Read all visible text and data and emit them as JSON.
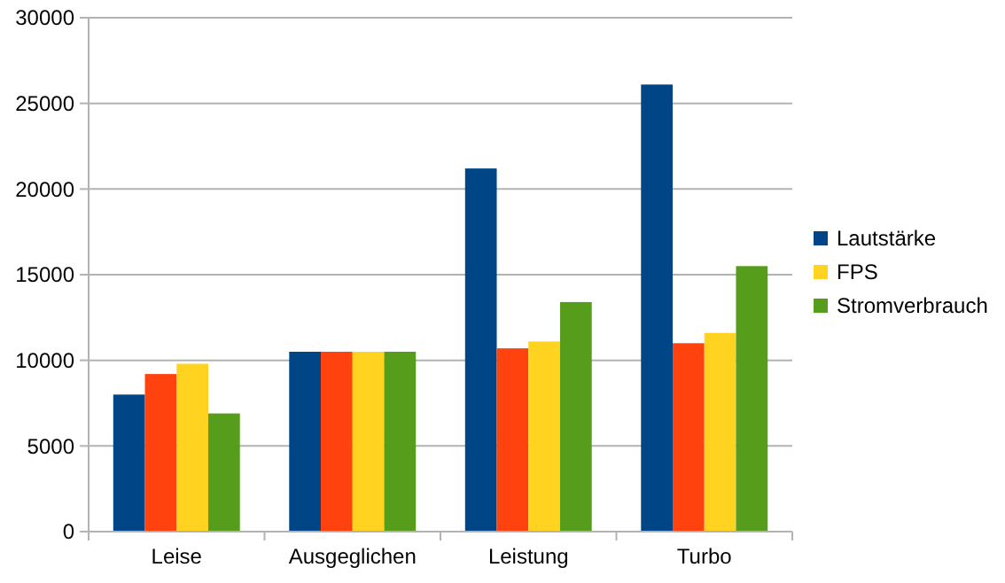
{
  "chart_data": {
    "type": "bar",
    "categories": [
      "Leise",
      "Ausgeglichen",
      "Leistung",
      "Turbo"
    ],
    "series": [
      {
        "name": "Lautstärke",
        "color": "#004586",
        "values": [
          8000,
          10500,
          21200,
          26100
        ]
      },
      {
        "color": "#ff420e",
        "values": [
          9200,
          10500,
          10700,
          11000
        ]
      },
      {
        "name": "FPS",
        "color": "#ffd320",
        "values": [
          9800,
          10500,
          11100,
          11600
        ]
      },
      {
        "name": "Stromverbrauch",
        "color": "#579d1c",
        "values": [
          6900,
          10500,
          13400,
          15500
        ]
      }
    ],
    "ylim": [
      0,
      30000
    ],
    "yticks": [
      0,
      5000,
      10000,
      15000,
      20000,
      25000,
      30000
    ],
    "grid": "y",
    "legend": "right"
  }
}
